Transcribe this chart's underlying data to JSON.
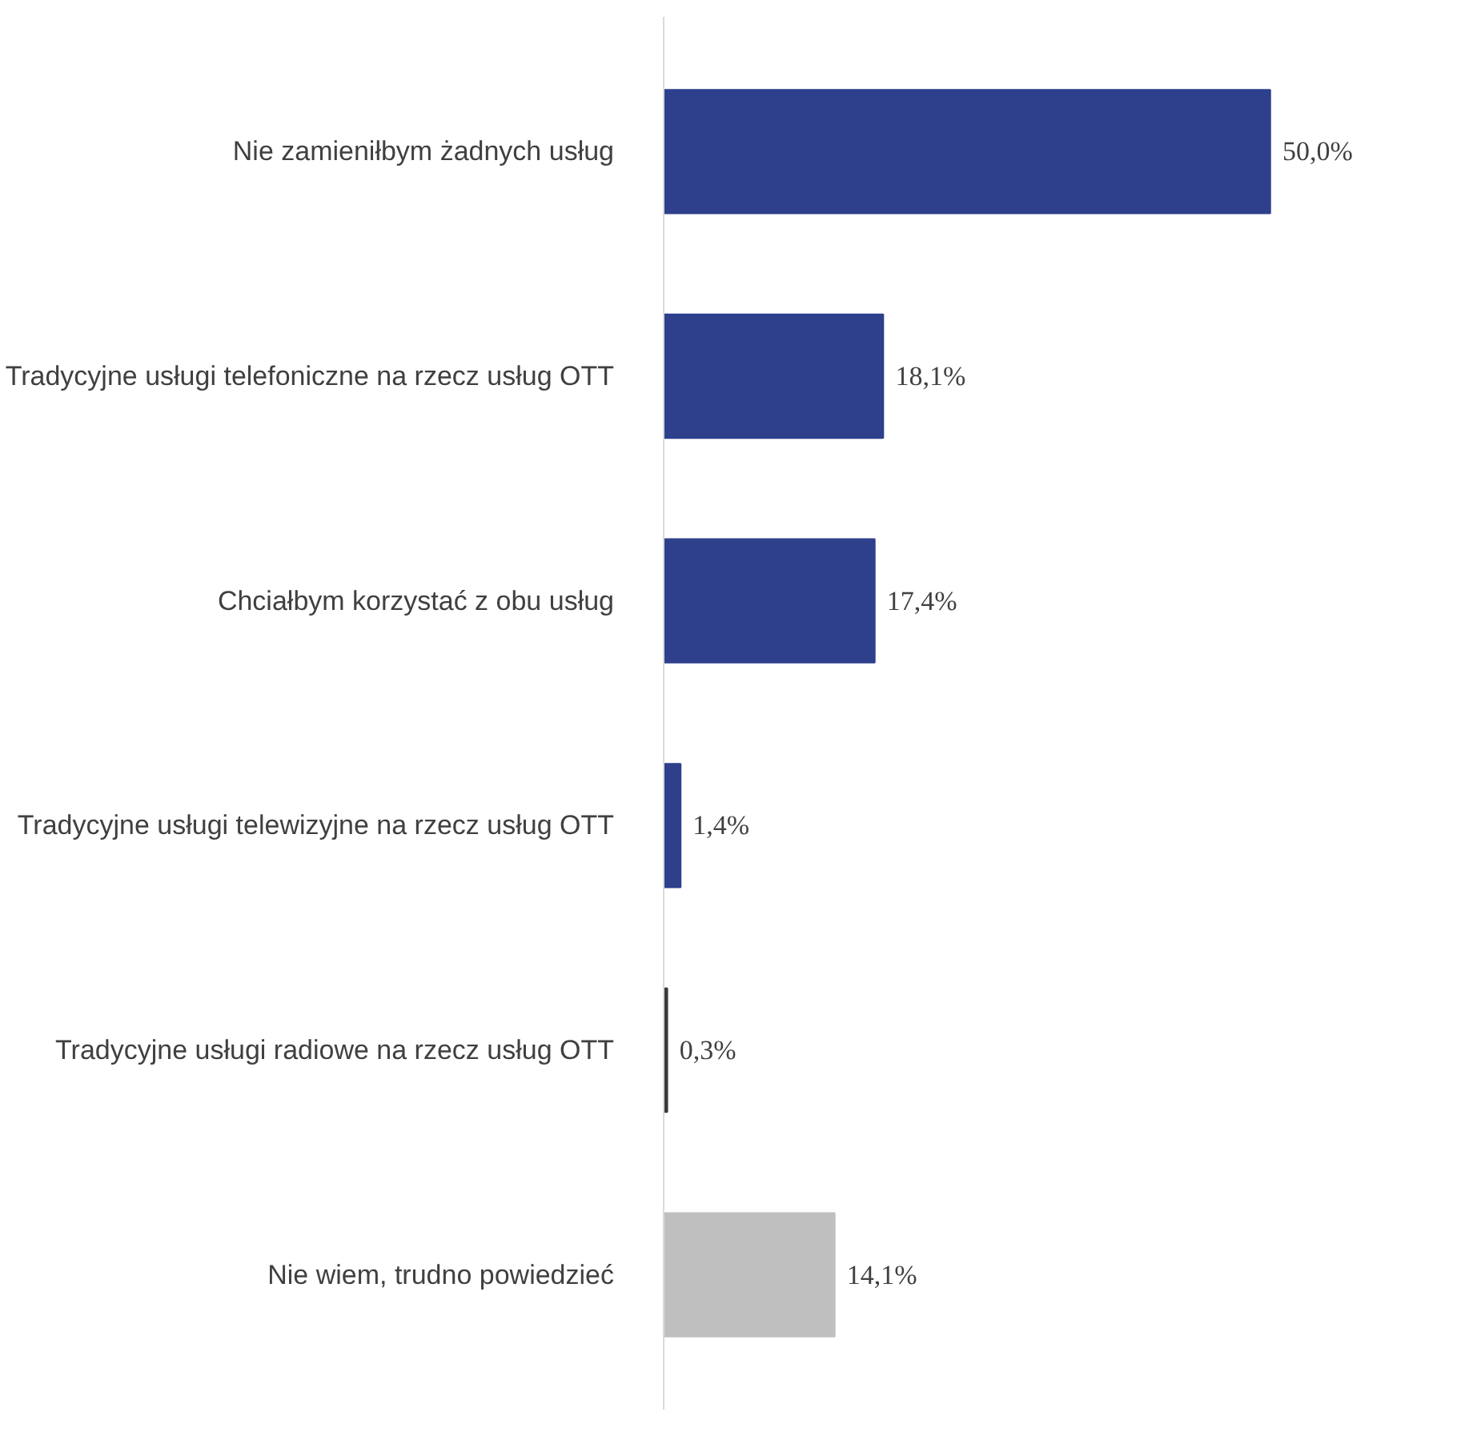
{
  "chart_data": {
    "type": "bar",
    "orientation": "horizontal",
    "categories": [
      "Nie zamieniłbym żadnych usług",
      "Tradycyjne usługi telefoniczne na rzecz usług OTT",
      "Chciałbym korzystać z obu usług",
      "Tradycyjne usługi telewizyjne na rzecz usług OTT",
      "Tradycyjne usługi radiowe na rzecz usług OTT",
      "Nie wiem, trudno powiedzieć"
    ],
    "values": [
      50.0,
      18.1,
      17.4,
      1.4,
      0.3,
      14.1
    ],
    "value_labels": [
      "50,0%",
      "18,1%",
      "17,4%",
      "1,4%",
      "0,3%",
      "14,1%"
    ],
    "colors": [
      "#2e3f8c",
      "#2e3f8c",
      "#2e3f8c",
      "#2e3f8c",
      "#3a3a3a",
      "#bfbfbf"
    ]
  }
}
